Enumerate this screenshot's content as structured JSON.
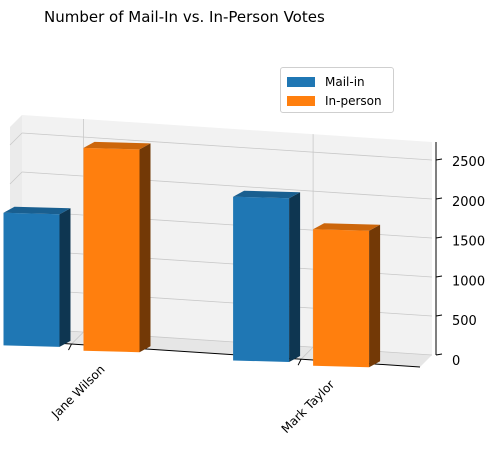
{
  "chart_data": {
    "type": "bar",
    "title": "Number of Mail-In vs. In-Person Votes",
    "categories": [
      "Jane Wilson",
      "Mark Taylor"
    ],
    "series": [
      {
        "name": "Mail-in",
        "values": [
          1700,
          2100
        ],
        "color": "#1f77b4"
      },
      {
        "name": "In-person",
        "values": [
          2600,
          1750
        ],
        "color": "#ff7f0e"
      }
    ],
    "xlabel": "",
    "ylabel": "",
    "ylim": [
      0,
      2500
    ],
    "yticks": [
      0,
      500,
      1000,
      1500,
      2000,
      2500
    ],
    "grid": true,
    "legend_position": "top-right",
    "projection": "3d"
  }
}
